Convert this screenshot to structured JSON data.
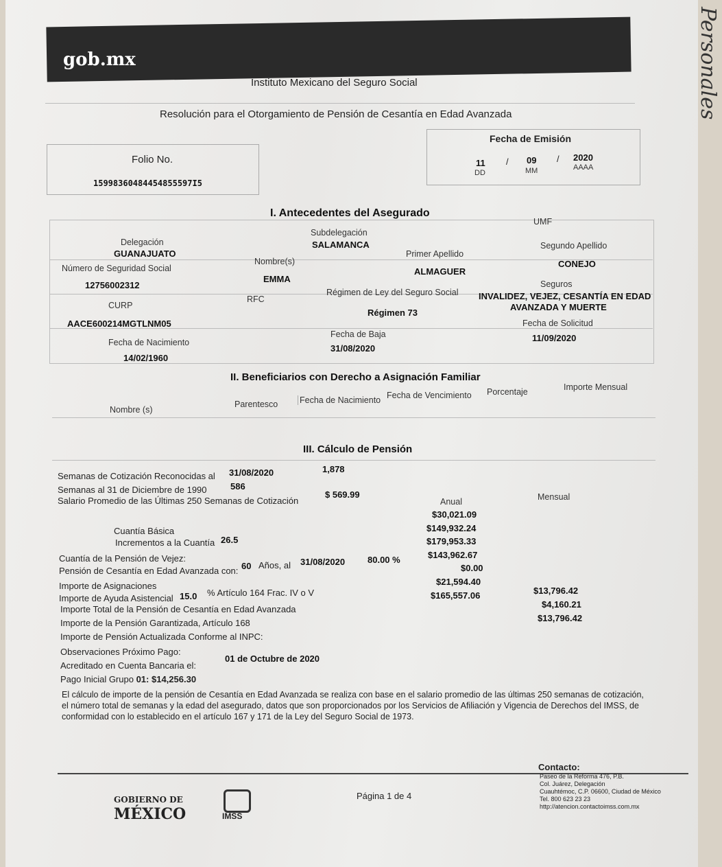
{
  "header": {
    "logo": "gob.mx",
    "institution": "Instituto Mexicano del Seguro Social",
    "title": "Resolución para el Otorgamiento de Pensión de Cesantía en Edad Avanzada"
  },
  "folio": {
    "label": "Folio No.",
    "value": "15998360484454855597I5"
  },
  "fecha_emision": {
    "label": "Fecha de Emisión",
    "dd": "11",
    "mm": "09",
    "aaaa": "2020",
    "dd_label": "DD",
    "mm_label": "MM",
    "aaaa_label": "AAAA",
    "sep": "/"
  },
  "section1": {
    "title": "I. Antecedentes del Asegurado",
    "delegacion": {
      "label": "Delegación",
      "value": "GUANAJUATO"
    },
    "subdelegacion": {
      "label": "Subdelegación",
      "value": "SALAMANCA"
    },
    "umf": {
      "label": "UMF"
    },
    "nss": {
      "label": "Número de Seguridad Social",
      "value": "12756002312"
    },
    "nombre": {
      "label": "Nombre(s)",
      "value": "EMMA"
    },
    "primer_apellido": {
      "label": "Primer Apellido",
      "value": "ALMAGUER"
    },
    "segundo_apellido": {
      "label": "Segundo Apellido",
      "value": "CONEJO"
    },
    "curp": {
      "label": "CURP",
      "value": "AACE600214MGTLNM05"
    },
    "rfc": {
      "label": "RFC"
    },
    "regimen": {
      "label": "Régimen de Ley del Seguro Social",
      "value": "Régimen 73"
    },
    "seguros": {
      "label": "Seguros",
      "value1": "INVALIDEZ, VEJEZ, CESANTÍA EN EDAD",
      "value2": "AVANZADA Y MUERTE"
    },
    "fecha_nacimiento": {
      "label": "Fecha de Nacimiento",
      "value": "14/02/1960"
    },
    "fecha_baja": {
      "label": "Fecha de Baja",
      "value": "31/08/2020"
    },
    "fecha_solicitud": {
      "label": "Fecha de Solicitud",
      "value": "11/09/2020"
    }
  },
  "section2": {
    "title": "II. Beneficiarios con Derecho a Asignación Familiar",
    "columns": [
      "Nombre (s)",
      "Parentesco",
      "Fecha de Nacimiento",
      "Fecha de Vencimiento",
      "Porcentaje",
      "Importe Mensual"
    ]
  },
  "section3": {
    "title": "III. Cálculo de Pensión",
    "semanas_reconocidas": {
      "label": "Semanas de Cotización Reconocidas al",
      "date": "31/08/2020",
      "value": "1,878"
    },
    "semanas_1990": {
      "label": "Semanas al 31 de Diciembre de 1990",
      "value": "586"
    },
    "salario_promedio": {
      "label": "Salario Promedio de las Últimas 250 Semanas de Cotización",
      "value": "$ 569.99"
    },
    "col_anual": "Anual",
    "col_mensual": "Mensual",
    "anual_values": [
      "$30,021.09",
      "$149,932.24",
      "$179,953.33",
      "$143,962.67",
      "$0.00",
      "$21,594.40",
      "$165,557.06"
    ],
    "mensual_values": [
      "$13,796.42",
      "$4,160.21",
      "$13,796.42"
    ],
    "cuantia_basica": "Cuantía Básica",
    "incrementos": {
      "label": "Incrementos a la Cuantía",
      "value": "26.5"
    },
    "cuantia_vejez": "Cuantía de la Pensión de Vejez:",
    "pension_cesantia": {
      "label": "Pensión de Cesantía en Edad Avanzada con:",
      "edad": "60",
      "anos": "Años, al",
      "date": "31/08/2020",
      "pct": "80.00 %"
    },
    "asignaciones": "Importe de Asignaciones",
    "ayuda": {
      "label": "Importe de Ayuda Asistencial",
      "value": "15.0",
      "suffix": "% Artículo 164 Frac. IV o V"
    },
    "total": "Importe Total de la Pensión de Cesantía en Edad Avanzada",
    "garantizada": "Importe de la Pensión Garantizada, Artículo 168",
    "actualizada": "Importe de Pensión Actualizada Conforme al INPC:",
    "observaciones": "Observaciones Próximo Pago:",
    "acreditado": {
      "label": "Acreditado en Cuenta Bancaria el:",
      "value": "01 de Octubre de 2020"
    },
    "pago_inicial": {
      "label": "Pago Inicial Grupo",
      "value": "01: $14,256.30"
    },
    "note": [
      "El cálculo de importe de la pensión de Cesantía en Edad Avanzada se realiza con base en el salario promedio de las últimas 250 semanas de cotización,",
      "el número total de semanas y la edad del asegurado, datos que son proporcionados por los Servicios de Afiliación y Vigencia de Derechos del IMSS, de",
      "conformidad con lo establecido en el artículo 167 y 171 de la Ley del Seguro Social de 1973."
    ]
  },
  "footer": {
    "gobierno1": "GOBIERNO DE",
    "gobierno2": "MÉXICO",
    "imss": "IMSS",
    "page": "Página 1 de 4",
    "contacto": {
      "title": "Contacto:",
      "lines": [
        "Paseo de la Reforma 476, P.B.",
        "Col. Juárez, Delegación",
        "Cuauhtémoc, C.P. 06600, Ciudad de México",
        "Tel. 800 623 23 23",
        "http://atencion.contactoimss.com.mx"
      ]
    }
  },
  "handwriting": "Personales"
}
